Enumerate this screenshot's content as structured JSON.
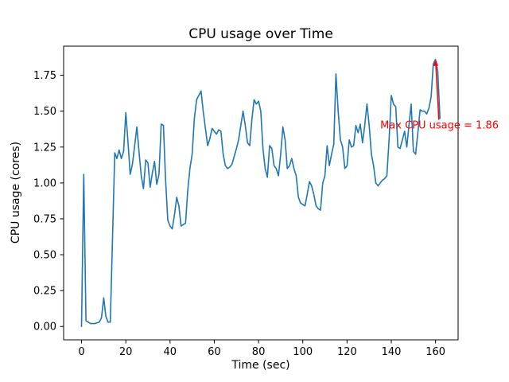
{
  "figure": {
    "background": "#ffffff"
  },
  "chart_data": {
    "type": "line",
    "title": "CPU usage over Time",
    "xlabel": "Time (sec)",
    "ylabel": "CPU usage (cores)",
    "line_color": "#1f77b4",
    "line_width": 1.6,
    "grid": false,
    "legend": "none",
    "xlim": [
      -8.1,
      170.2
    ],
    "ylim": [
      -0.093,
      1.953
    ],
    "xticks": [
      0,
      20,
      40,
      60,
      80,
      100,
      120,
      140,
      160
    ],
    "xtick_labels": [
      "0",
      "20",
      "40",
      "60",
      "80",
      "100",
      "120",
      "140",
      "160"
    ],
    "yticks": [
      0.0,
      0.25,
      0.5,
      0.75,
      1.0,
      1.25,
      1.5,
      1.75
    ],
    "ytick_labels": [
      "0.00",
      "0.25",
      "0.50",
      "0.75",
      "1.00",
      "1.25",
      "1.50",
      "1.75"
    ],
    "x": [
      0,
      1,
      2,
      4,
      6,
      8,
      9,
      10,
      11,
      12,
      13,
      15,
      16,
      17,
      18,
      19,
      20,
      21,
      22,
      23,
      24,
      25,
      26,
      27,
      28,
      29,
      30,
      31,
      32,
      33,
      34,
      35,
      36,
      37,
      38,
      39,
      40,
      41,
      42,
      43,
      44,
      45,
      46,
      47,
      48,
      49,
      50,
      51,
      52,
      53,
      54,
      55,
      56,
      57,
      58,
      59,
      60,
      61,
      62,
      63,
      64,
      65,
      66,
      67,
      68,
      70,
      71,
      73,
      74,
      75,
      76,
      77,
      78,
      79,
      80,
      81,
      82,
      83,
      84,
      85,
      86,
      87,
      88,
      89,
      90,
      91,
      92,
      93,
      94,
      95,
      96,
      97,
      98,
      99,
      100,
      101,
      102,
      103,
      104,
      105,
      106,
      107,
      108,
      109,
      110,
      111,
      112,
      113,
      114,
      115,
      116,
      117,
      118,
      119,
      120,
      121,
      122,
      123,
      124,
      125,
      126,
      127,
      128,
      129,
      130,
      131,
      132,
      133,
      134,
      135,
      136,
      137,
      138,
      139,
      140,
      141,
      142,
      143,
      144,
      145,
      146,
      147,
      148,
      149,
      150,
      151,
      152,
      153,
      154,
      155,
      156,
      157,
      158,
      159,
      160,
      161,
      162
    ],
    "y": [
      0.0,
      1.06,
      0.04,
      0.02,
      0.02,
      0.03,
      0.06,
      0.2,
      0.07,
      0.03,
      0.03,
      1.21,
      1.17,
      1.23,
      1.17,
      1.22,
      1.49,
      1.28,
      1.06,
      1.13,
      1.26,
      1.39,
      1.21,
      1.05,
      0.96,
      1.16,
      1.14,
      0.97,
      1.07,
      1.15,
      0.99,
      1.06,
      1.41,
      1.4,
      1.02,
      0.74,
      0.7,
      0.68,
      0.78,
      0.9,
      0.84,
      0.7,
      0.71,
      0.72,
      0.95,
      1.1,
      1.2,
      1.45,
      1.58,
      1.61,
      1.64,
      1.5,
      1.38,
      1.26,
      1.31,
      1.38,
      1.36,
      1.34,
      1.37,
      1.36,
      1.2,
      1.12,
      1.1,
      1.11,
      1.13,
      1.24,
      1.3,
      1.5,
      1.4,
      1.28,
      1.26,
      1.44,
      1.58,
      1.55,
      1.57,
      1.5,
      1.24,
      1.1,
      1.04,
      1.26,
      1.24,
      1.12,
      1.1,
      1.05,
      1.2,
      1.39,
      1.3,
      1.1,
      1.12,
      1.17,
      1.1,
      1.05,
      0.9,
      0.86,
      0.85,
      0.84,
      0.92,
      1.01,
      0.98,
      0.92,
      0.84,
      0.82,
      0.81,
      1.0,
      1.05,
      1.26,
      1.12,
      1.2,
      1.27,
      1.76,
      1.5,
      1.3,
      1.25,
      1.1,
      1.12,
      1.3,
      1.25,
      1.26,
      1.4,
      1.35,
      1.41,
      1.28,
      1.4,
      1.55,
      1.4,
      1.2,
      1.12,
      1.0,
      0.98,
      1.0,
      1.02,
      1.03,
      1.05,
      1.3,
      1.61,
      1.55,
      1.53,
      1.25,
      1.24,
      1.3,
      1.36,
      1.25,
      1.4,
      1.55,
      1.22,
      1.2,
      1.35,
      1.51,
      1.5,
      1.5,
      1.48,
      1.52,
      1.6,
      1.83,
      1.86,
      1.78,
      1.45
    ],
    "annotation": {
      "text": "Max CPU usage = 1.86",
      "color": "#ff0000",
      "xy": [
        160,
        1.86
      ],
      "text_pos": [
        135,
        1.38
      ],
      "arrow_start": [
        161.5,
        1.44
      ]
    }
  }
}
